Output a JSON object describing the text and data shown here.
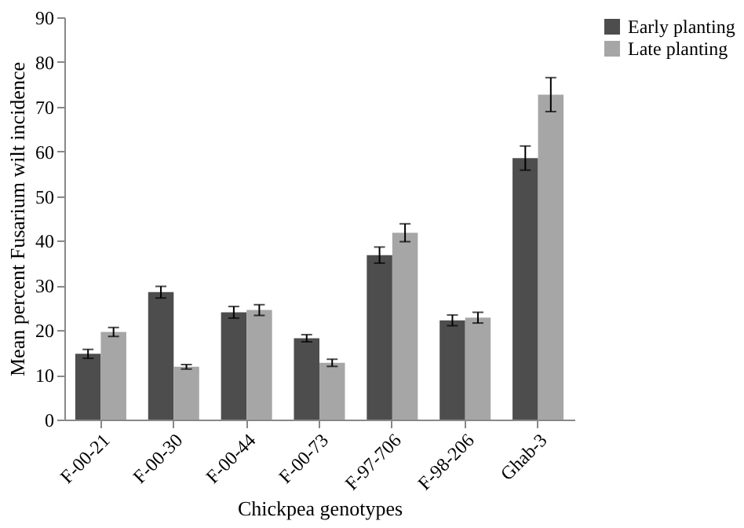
{
  "chart_data": {
    "type": "bar",
    "xlabel": "Chickpea genotypes",
    "ylabel": "Mean percent Fusarium wilt incidence",
    "categories": [
      "F-00-21",
      "F-00-30",
      "F-00-44",
      "F-00-73",
      "F-97-706",
      "F-98-206",
      "Ghab-3"
    ],
    "series": [
      {
        "name": "Early planting",
        "color": "#4d4d4d",
        "values": [
          14.7,
          28.5,
          24,
          18.2,
          36.8,
          22.2,
          58.5
        ],
        "errors": [
          1,
          1.3,
          1.3,
          0.8,
          1.8,
          1.2,
          2.7
        ]
      },
      {
        "name": "Late planting",
        "color": "#a6a6a6",
        "values": [
          19.6,
          11.8,
          24.5,
          12.7,
          41.8,
          22.8,
          72.7
        ],
        "errors": [
          1,
          0.5,
          1.2,
          0.8,
          2,
          1.2,
          3.8
        ]
      }
    ],
    "ylim": [
      0,
      90
    ],
    "yticks": [
      0,
      10,
      20,
      30,
      40,
      50,
      60,
      70,
      80,
      90
    ],
    "grid": false,
    "legend": "right"
  }
}
